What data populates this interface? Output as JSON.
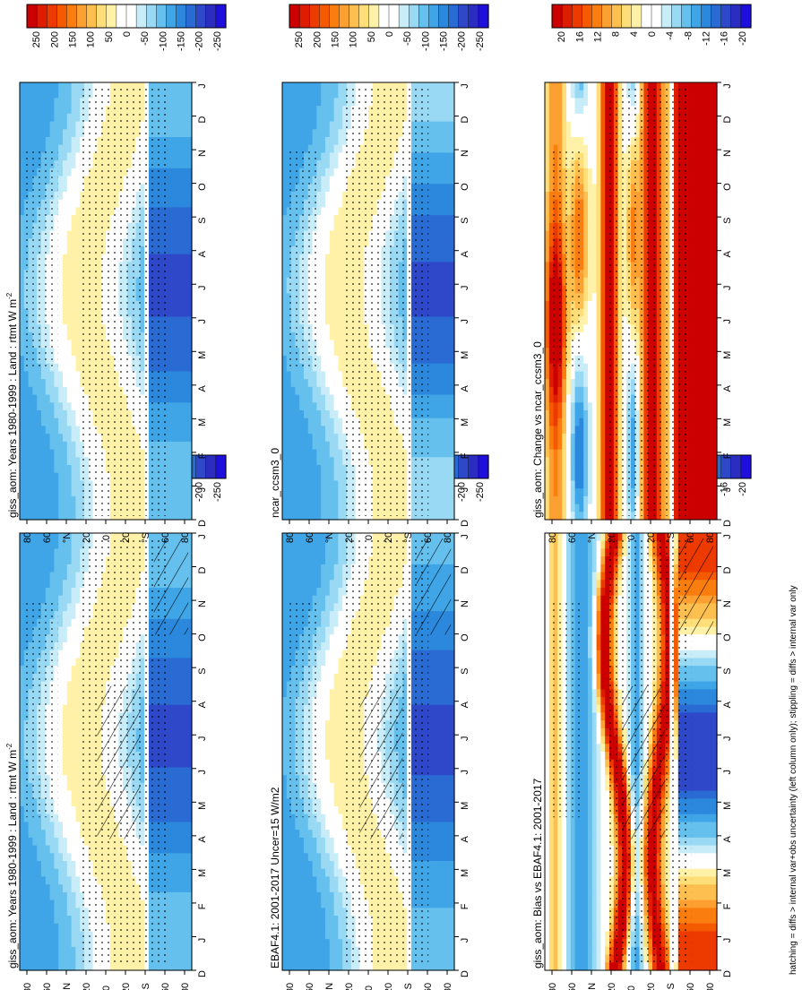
{
  "figure": {
    "footnote": "hatching = diffs > internal var+obs uncertainty (left column only); stippling = diffs > internal var only",
    "abs_colorbar_labels": [
      "250",
      "200",
      "150",
      "100",
      "50",
      "0",
      "-50",
      "-100",
      "-150",
      "-200",
      "-250"
    ],
    "diff_colorbar_labels": [
      "20",
      "16",
      "12",
      "8",
      "4",
      "0",
      "-4",
      "-8",
      "-12",
      "-16",
      "-20"
    ],
    "month_labels": [
      "D",
      "J",
      "F",
      "M",
      "A",
      "M",
      "J",
      "J",
      "A",
      "S",
      "O",
      "N",
      "D",
      "J"
    ],
    "lat_labels": [
      "80",
      "60",
      "°N",
      "20",
      "0",
      "20",
      "°S",
      "60",
      "80"
    ]
  },
  "colors": {
    "abs_scale": [
      "#cc0000",
      "#dd1c00",
      "#ec3a00",
      "#f55a00",
      "#fa7d10",
      "#fca032",
      "#fdc050",
      "#fede78",
      "#fff2a8",
      "#ffffff",
      "#ffffff",
      "#c8ecf8",
      "#99d9f4",
      "#66c0ee",
      "#3fa5e6",
      "#2b88dc",
      "#2a6ad3",
      "#2e48c9",
      "#2b2dc0",
      "#1f0fdd"
    ],
    "diff_scale": [
      "#cc0000",
      "#dd1c00",
      "#ec3a00",
      "#f55a00",
      "#fa7d10",
      "#fca032",
      "#fdc050",
      "#fede78",
      "#fff2a8",
      "#ffffff",
      "#ffffff",
      "#c8ecf8",
      "#99d9f4",
      "#66c0ee",
      "#3fa5e6",
      "#2b88dc",
      "#2a6ad3",
      "#2e48c9",
      "#2b2dc0",
      "#1f0fdd"
    ]
  },
  "chart_data": [
    {
      "type": "heatmap",
      "id": "model-left",
      "title": "giss_aom: Years 1980-1999 : Land : rtmt W m",
      "title_superscript": "-2",
      "x": "latitude (80N to 80S)",
      "y": "month (D to J)",
      "field": "rtmt_model",
      "value_range": [
        -250,
        250
      ],
      "hatching": true,
      "stippling": true
    },
    {
      "type": "heatmap",
      "id": "model-right",
      "title": "giss_aom: Years 1980-1999 : Land : rtmt W m",
      "title_superscript": "-2",
      "field": "rtmt_model",
      "value_range": [
        -250,
        250
      ],
      "hatching": false,
      "stippling": true
    },
    {
      "type": "heatmap",
      "id": "obs-left",
      "title": "EBAF4.1: 2001-2017 Uncer=15 W/m2",
      "field": "rtmt_obs",
      "value_range": [
        -250,
        250
      ],
      "hatching": true,
      "stippling": true
    },
    {
      "type": "heatmap",
      "id": "ref-right",
      "title": "ncar_ccsm3_0",
      "field": "rtmt_ref",
      "value_range": [
        -250,
        250
      ],
      "hatching": false,
      "stippling": true
    },
    {
      "type": "heatmap",
      "id": "bias-left",
      "title": "giss_aom: Bias vs EBAF4.1: 2001-2017",
      "field": "bias",
      "value_range": [
        -20,
        20
      ],
      "hatching": true,
      "stippling": true
    },
    {
      "type": "heatmap",
      "id": "change-right",
      "title": "giss_aom: Change vs ncar_ccsm3_0",
      "field": "change",
      "value_range": [
        -20,
        20
      ],
      "hatching": false,
      "stippling": true
    }
  ]
}
